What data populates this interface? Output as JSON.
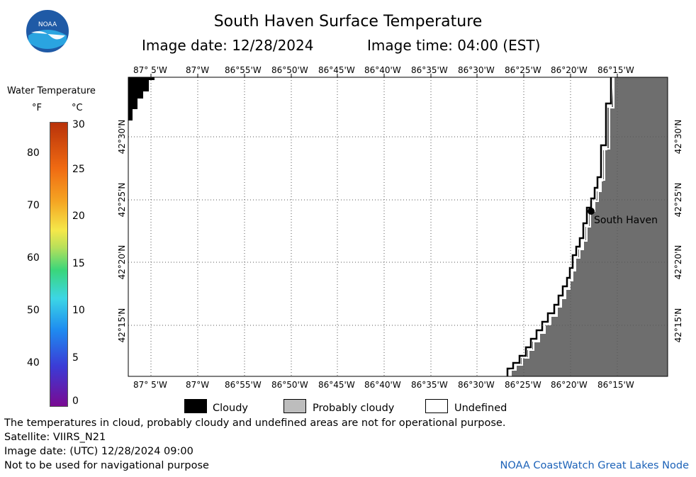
{
  "header": {
    "title": "South Haven Surface Temperature",
    "image_date": "Image date: 12/28/2024",
    "image_time": "Image time: 04:00 (EST)"
  },
  "colorbar": {
    "title": "Water Temperature",
    "unit_f": "°F",
    "unit_c": "°C",
    "f_ticks": [
      "80",
      "70",
      "60",
      "50",
      "40"
    ],
    "c_ticks": [
      "30",
      "25",
      "20",
      "15",
      "10",
      "5",
      "0"
    ],
    "colors": [
      "#7a0a92",
      "#3b3bd6",
      "#1e8cf0",
      "#3cd6e6",
      "#3ad67a",
      "#b8e05a",
      "#f5e84a",
      "#f5a623",
      "#f06a12",
      "#b8320a"
    ]
  },
  "map": {
    "lon_labels": [
      "87° 5'W",
      "87°W",
      "86°55'W",
      "86°50'W",
      "86°45'W",
      "86°40'W",
      "86°35'W",
      "86°30'W",
      "86°25'W",
      "86°20'W",
      "86°15'W"
    ],
    "lat_labels": [
      "42°30'N",
      "42°25'N",
      "42°20'N",
      "42°15'N"
    ],
    "place_label": "South Haven",
    "land_color": "#6e6e6e",
    "cloud_color": "#000000"
  },
  "key": {
    "cloudy": "Cloudy",
    "probably_cloudy": "Probably cloudy",
    "undefined": "Undefined"
  },
  "footer": {
    "disclaimer": "The temperatures in cloud, probably cloudy and undefined areas are not for operational purpose.",
    "satellite": "Satellite: VIIRS_N21",
    "utc_date": "Image date: (UTC) 12/28/2024  09:00",
    "nav_warning": "Not to be used for navigational purpose",
    "credit": "NOAA CoastWatch Great Lakes Node"
  }
}
